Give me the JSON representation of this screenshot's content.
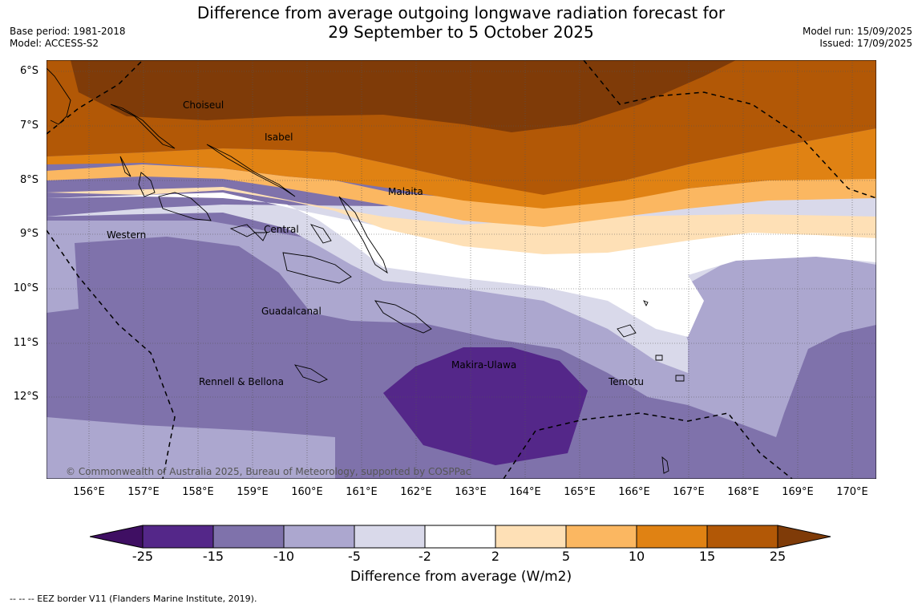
{
  "header": {
    "title_line1": "Difference from average outgoing longwave radiation forecast for",
    "title_line2": "29 September to 5 October 2025",
    "base_period": "Base period: 1981-2018",
    "model": "Model: ACCESS-S2",
    "model_run": "Model run: 15/09/2025",
    "issued": "Issued: 17/09/2025"
  },
  "map": {
    "lat_ticks": [
      "6°S",
      "7°S",
      "8°S",
      "9°S",
      "10°S",
      "11°S",
      "12°S"
    ],
    "lon_ticks": [
      "156°E",
      "157°E",
      "158°E",
      "159°E",
      "160°E",
      "161°E",
      "162°E",
      "163°E",
      "164°E",
      "165°E",
      "166°E",
      "167°E",
      "168°E",
      "169°E",
      "170°E"
    ],
    "regions": [
      "Choiseul",
      "Isabel",
      "Malaita",
      "Western",
      "Central",
      "Guadalcanal",
      "Makira-Ulawa",
      "Rennell & Bellona",
      "Temotu"
    ],
    "copyright": "© Commonwealth of Australia 2025, Bureau of Meteorology, supported by COSPPac"
  },
  "colorbar": {
    "ticks": [
      "-25",
      "-15",
      "-10",
      "-5",
      "-2",
      "2",
      "5",
      "10",
      "15",
      "25"
    ],
    "colors": [
      "#3f0f63",
      "#542789",
      "#7f72ab",
      "#aca7cf",
      "#d9d9ea",
      "#ffffff",
      "#fee0b6",
      "#fbb761",
      "#e08213",
      "#b25806",
      "#7f3b08"
    ],
    "label": "Difference from average (W/m2)"
  },
  "footnote": "--  --  -- EEZ border V11 (Flanders Marine Institute, 2019)."
}
